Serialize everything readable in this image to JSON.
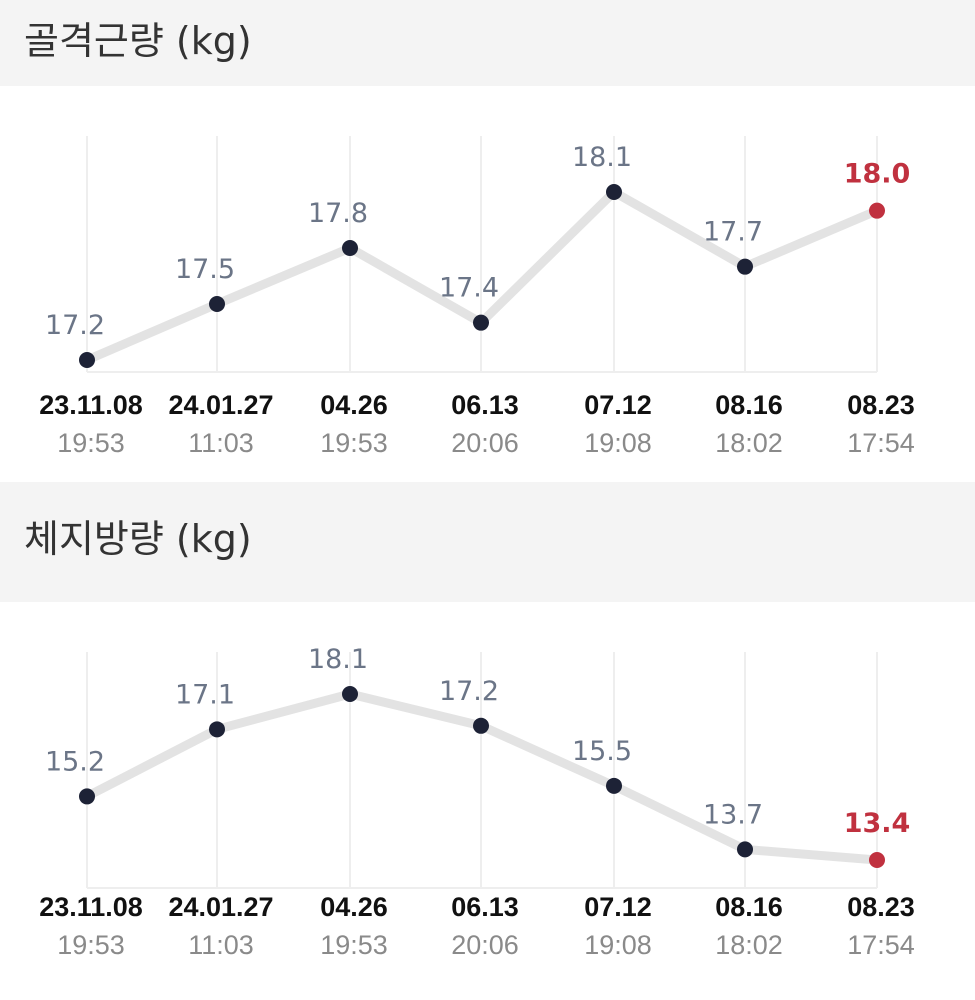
{
  "colors": {
    "line": "#e3e3e3",
    "point": "#1d2236",
    "latest": "#c0313f",
    "grid": "#eeeeee",
    "value_text": "#6b7587"
  },
  "chart_data": [
    {
      "type": "line",
      "title": "골격근량 (kg)",
      "categories": [
        "23.11.08",
        "24.01.27",
        "04.26",
        "06.13",
        "07.12",
        "08.16",
        "08.23"
      ],
      "times": [
        "19:53",
        "11:03",
        "19:53",
        "20:06",
        "19:08",
        "18:02",
        "17:54"
      ],
      "values": [
        17.2,
        17.5,
        17.8,
        17.4,
        18.1,
        17.7,
        18.0
      ],
      "value_labels": [
        "17.2",
        "17.5",
        "17.8",
        "17.4",
        "18.1",
        "17.7",
        "18.0"
      ],
      "ylim": [
        17.0,
        18.4
      ],
      "grid": "vertical",
      "highlight_last": true
    },
    {
      "type": "line",
      "title": "체지방량 (kg)",
      "categories": [
        "23.11.08",
        "24.01.27",
        "04.26",
        "06.13",
        "07.12",
        "08.16",
        "08.23"
      ],
      "times": [
        "19:53",
        "11:03",
        "19:53",
        "20:06",
        "19:08",
        "18:02",
        "17:54"
      ],
      "values": [
        15.2,
        17.1,
        18.1,
        17.2,
        15.5,
        13.7,
        13.4
      ],
      "value_labels": [
        "15.2",
        "17.1",
        "18.1",
        "17.2",
        "15.5",
        "13.7",
        "13.4"
      ],
      "ylim": [
        12.8,
        18.9
      ],
      "grid": "vertical",
      "highlight_last": true
    }
  ]
}
